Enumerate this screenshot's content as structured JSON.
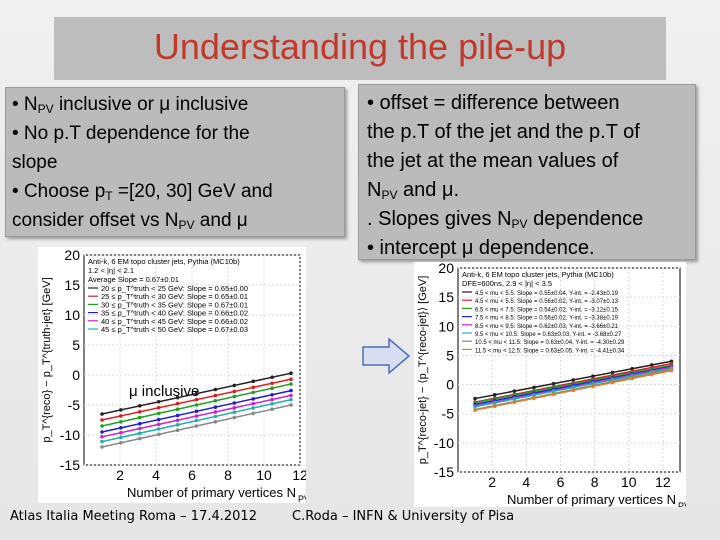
{
  "slide": {
    "title": "Understanding the pile-up",
    "left_box": {
      "line1_pre": "• N",
      "line1_sub": "PV",
      "line1_post": " inclusive or μ inclusive",
      "line2": "• No p.T dependence for the",
      "line3": "slope",
      "line4_pre": "• Choose p",
      "line4_sub": "T",
      "line4_post": " =[20, 30] GeV and",
      "line5_pre": "consider offset vs N",
      "line5_sub": "PV",
      "line5_post": " and μ"
    },
    "right_box": {
      "line1": "• offset = difference between",
      "line2": "the p.T of the jet and the p.T of",
      "line3": "the jet at the mean values of",
      "line4_pre": "N",
      "line4_sub": "PV",
      "line4_post": " and μ.",
      "line5_pre": ". Slopes gives N",
      "line5_sub": "PV",
      "line5_post": " dependence",
      "line6": "• intercept μ dependence."
    },
    "footer_left": "Atlas Italia Meeting Roma – 17.4.2012",
    "footer_right": "C.Roda – INFN & University of Pisa",
    "arrow_icon": "right-arrow-icon",
    "arrow_color": "#d6dff2"
  },
  "chart_data": [
    {
      "type": "line",
      "header": [
        "Anti-k, 6 EM topo cluster jets, Pythia (MC10b)",
        "1.2 < |η| < 2.1",
        "Average Slope = 0.67±0.01"
      ],
      "annotation": "μ inclusive",
      "xlabel": "Number of primary vertices N",
      "xlabel_sub": "PV",
      "ylabel": "p_T^{reco} − p_T^{truth-jet} [GeV]",
      "xlim": [
        0,
        12
      ],
      "ylim": [
        -15,
        20
      ],
      "xticks": [
        2,
        4,
        6,
        8,
        10,
        12
      ],
      "yticks": [
        -15,
        -10,
        -5,
        0,
        5,
        10,
        15,
        20
      ],
      "grid": true,
      "legend_position": "top-left",
      "series": [
        {
          "name": "20 ≤ p_T^truth < 25 GeV: Slope = 0.65±0.00",
          "color": "#222222",
          "x": [
            1,
            11.5
          ],
          "y": [
            -6.5,
            0.3
          ]
        },
        {
          "name": "25 ≤ p_T^truth < 30 GeV: Slope = 0.65±0.01",
          "color": "#d62020",
          "x": [
            1,
            11.5
          ],
          "y": [
            -7.5,
            -0.7
          ]
        },
        {
          "name": "30 ≤ p_T^truth < 35 GeV: Slope = 0.67±0.01",
          "color": "#20a020",
          "x": [
            1,
            11.5
          ],
          "y": [
            -8.5,
            -1.5
          ]
        },
        {
          "name": "35 ≤ p_T^truth < 40 GeV: Slope = 0.66±0.02",
          "color": "#2020d0",
          "x": [
            1,
            11.5
          ],
          "y": [
            -9.5,
            -2.6
          ]
        },
        {
          "name": "40 ≤ p_T^truth < 45 GeV: Slope = 0.66±0.02",
          "color": "#d020d0",
          "x": [
            1,
            11.5
          ],
          "y": [
            -10.3,
            -3.4
          ]
        },
        {
          "name": "45 ≤ p_T^truth < 50 GeV: Slope = 0.67±0.03",
          "color": "#20b0b0",
          "x": [
            1,
            11.5
          ],
          "y": [
            -11.1,
            -4.1
          ]
        },
        {
          "name": "",
          "color": "#888888",
          "x": [
            1,
            11.5
          ],
          "y": [
            -12.0,
            -5.0
          ]
        }
      ]
    },
    {
      "type": "line",
      "header": [
        "Anti-k, 6 EM topo cluster jets, Pythia (MC10b)",
        "DFE=600ns, 2.9 < |η| < 3.5"
      ],
      "xlabel": "Number of primary vertices N",
      "xlabel_sub": "PV",
      "ylabel": "p_T^{reco-jet} − ⟨p_T^{reco-jet}⟩ [GeV]",
      "xlim": [
        0,
        13
      ],
      "ylim": [
        -15,
        20
      ],
      "xticks": [
        2,
        4,
        6,
        8,
        10,
        12
      ],
      "yticks": [
        -15,
        -10,
        -5,
        0,
        5,
        10,
        15,
        20
      ],
      "grid": true,
      "legend_position": "top-left",
      "series": [
        {
          "name": "4.5 < mu < 5.5:   Slope = 0.55±0.04, Y-int. = -2.43±0.19",
          "color": "#222222",
          "x": [
            1,
            12.5
          ],
          "y": [
            -2.4,
            4.0
          ]
        },
        {
          "name": "4.5 < mu < 5.5:   Slope = 0.56±0.02, Y-int. = -3.07±0.13",
          "color": "#d62020",
          "x": [
            1,
            12.5
          ],
          "y": [
            -3.0,
            3.6
          ]
        },
        {
          "name": "6.5 < mu < 7.5:   Slope = 0.54±0.02, Y-int. = -3.12±0.15",
          "color": "#20a020",
          "x": [
            1,
            12.5
          ],
          "y": [
            -3.1,
            3.3
          ]
        },
        {
          "name": "7.5 < mu < 8.5:   Slope = 0.56±0.02, Y-int. = -3.38±0.19",
          "color": "#2020d0",
          "x": [
            1,
            12.5
          ],
          "y": [
            -3.4,
            3.1
          ]
        },
        {
          "name": "8.5 < mu < 9.5:   Slope = 0.62±0.03, Y-int. = -3.66±0.21",
          "color": "#d020d0",
          "x": [
            1,
            12.5
          ],
          "y": [
            -3.7,
            3.0
          ]
        },
        {
          "name": "9.5 < mu < 10.5:  Slope = 0.63±0.03, Y-int. = -3.68±0.27",
          "color": "#20b0b0",
          "x": [
            1,
            12.5
          ],
          "y": [
            -3.8,
            2.8
          ]
        },
        {
          "name": "10.5 < mu < 11.5: Slope = 0.63±0.04, Y-int. = -4.30±0.29",
          "color": "#888888",
          "x": [
            1,
            12.5
          ],
          "y": [
            -4.3,
            2.6
          ]
        },
        {
          "name": "11.5 < mu < 12.5: Slope = 0.63±0.05, Y-int. = -4.41±0.34",
          "color": "#e08020",
          "x": [
            1,
            12.5
          ],
          "y": [
            -4.4,
            2.4
          ]
        }
      ]
    }
  ]
}
